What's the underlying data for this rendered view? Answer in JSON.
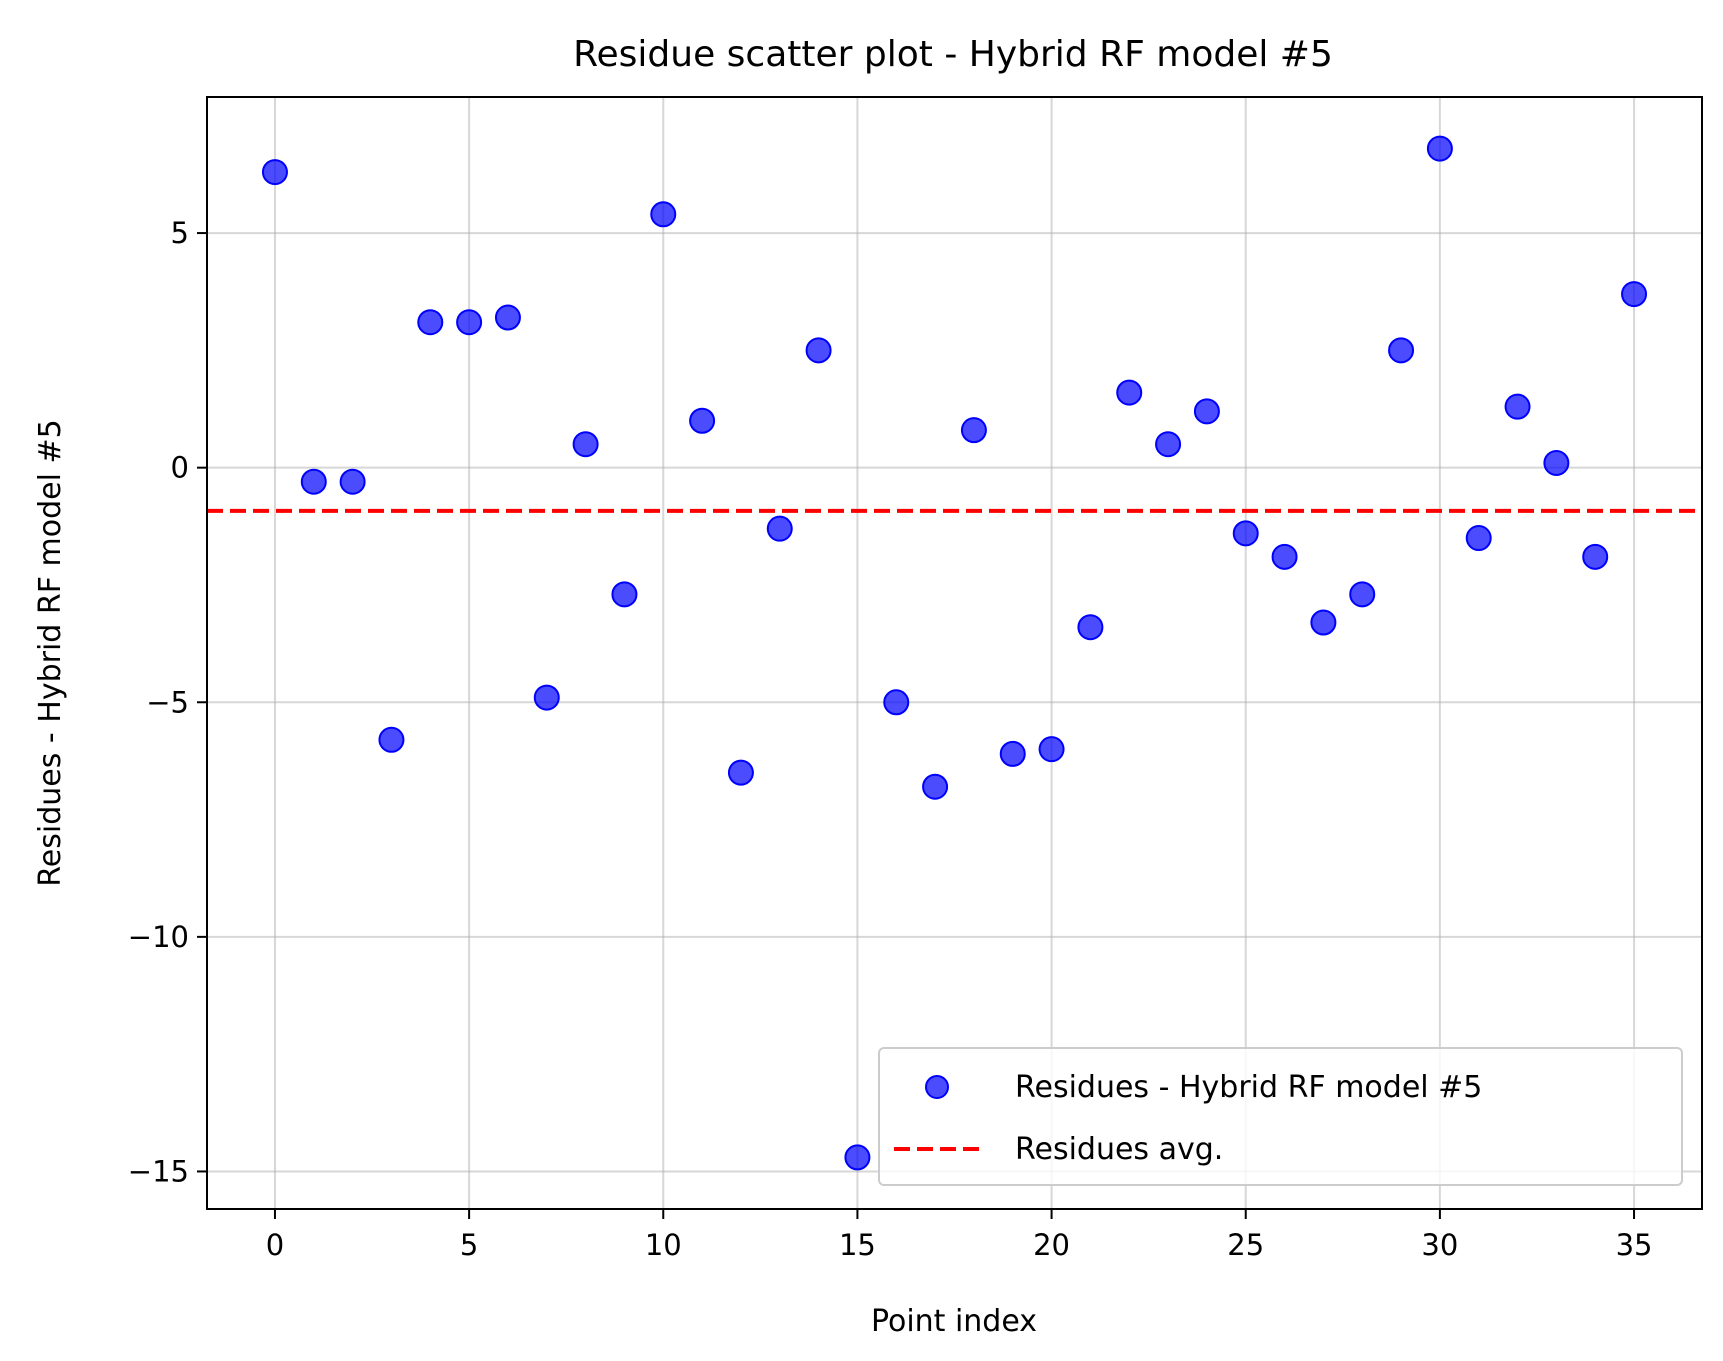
{
  "chart_data": {
    "type": "scatter",
    "title": "Residue scatter plot - Hybrid RF model #5",
    "xlabel": "Point index",
    "ylabel": "Residues - Hybrid RF model #5",
    "xlim": [
      -1.75,
      36.75
    ],
    "ylim": [
      -15.8,
      7.9
    ],
    "xticks": [
      0,
      5,
      10,
      15,
      20,
      25,
      30,
      35
    ],
    "yticks": [
      5,
      0,
      -5,
      -10,
      -15
    ],
    "xtick_labels": [
      "0",
      "5",
      "10",
      "15",
      "20",
      "25",
      "30",
      "35"
    ],
    "ytick_labels": [
      "5",
      "0",
      "−5",
      "−10",
      "−15"
    ],
    "grid": true,
    "legend_position": "lower right",
    "series": [
      {
        "name": "Residues - Hybrid RF model #5",
        "kind": "scatter",
        "color": "#0000ff",
        "x": [
          0,
          1,
          2,
          3,
          4,
          5,
          6,
          7,
          8,
          9,
          10,
          11,
          12,
          13,
          14,
          15,
          16,
          17,
          18,
          19,
          20,
          21,
          22,
          23,
          24,
          25,
          26,
          27,
          28,
          29,
          30,
          31,
          32,
          33,
          34,
          35
        ],
        "y": [
          6.3,
          -0.3,
          -0.3,
          -5.8,
          3.1,
          3.1,
          3.2,
          -4.9,
          0.5,
          -2.7,
          5.4,
          1.0,
          -6.5,
          -1.3,
          2.5,
          -14.7,
          -5.0,
          -6.8,
          0.8,
          -6.1,
          -6.0,
          -3.4,
          1.6,
          0.5,
          1.2,
          -1.4,
          -1.9,
          -3.3,
          -2.7,
          2.5,
          6.8,
          -1.5,
          1.3,
          0.1,
          -1.9,
          3.7
        ]
      },
      {
        "name": "Residues avg.",
        "kind": "hline",
        "color": "#ff0000",
        "y": -0.92
      }
    ]
  }
}
